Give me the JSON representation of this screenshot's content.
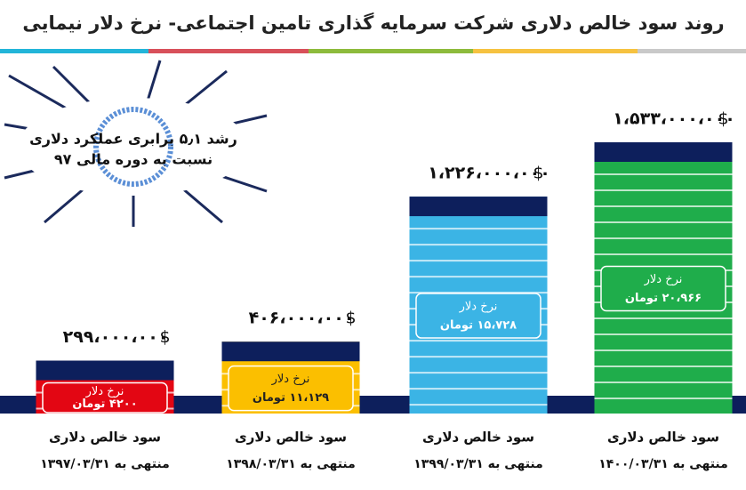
{
  "chart_data": {
    "type": "bar",
    "title": "روند سود خالص دلاری شرکت سرمایه گذاری تامین اجتماعی- نرخ دلار نیمایی",
    "annotation": [
      "رشد ۵٫۱ برابری عملکرد دلاری",
      "نسبت به دوره مالی ۹۷"
    ],
    "category_title": "سود خالص دلاری",
    "categories": [
      "منتهی به ۱۳۹۷/۰۳/۳۱",
      "منتهی به ۱۳۹۸/۰۳/۳۱",
      "منتهی به ۱۳۹۹/۰۳/۳۱",
      "منتهی به ۱۴۰۰/۰۳/۳۱"
    ],
    "values": [
      299000000,
      406000000,
      1226000000,
      1533000000
    ],
    "value_labels": [
      "۲۹۹،۰۰۰،۰۰۰",
      "۴۰۶،۰۰۰،۰۰۰",
      "۱،۲۲۶،۰۰۰،۰۰۰",
      "۱،۵۳۳،۰۰۰،۰۰۰"
    ],
    "currency": "$",
    "rate_title": "نرخ دلار",
    "rate_labels": [
      "۴۲۰۰ تومان",
      "۱۱،۱۲۹ تومان",
      "۱۵،۷۲۸ تومان",
      "۲۰،۹۶۶ تومان"
    ],
    "colors": [
      "#e30613",
      "#fbbf00",
      "#3bb4e5",
      "#1fad4b"
    ]
  }
}
